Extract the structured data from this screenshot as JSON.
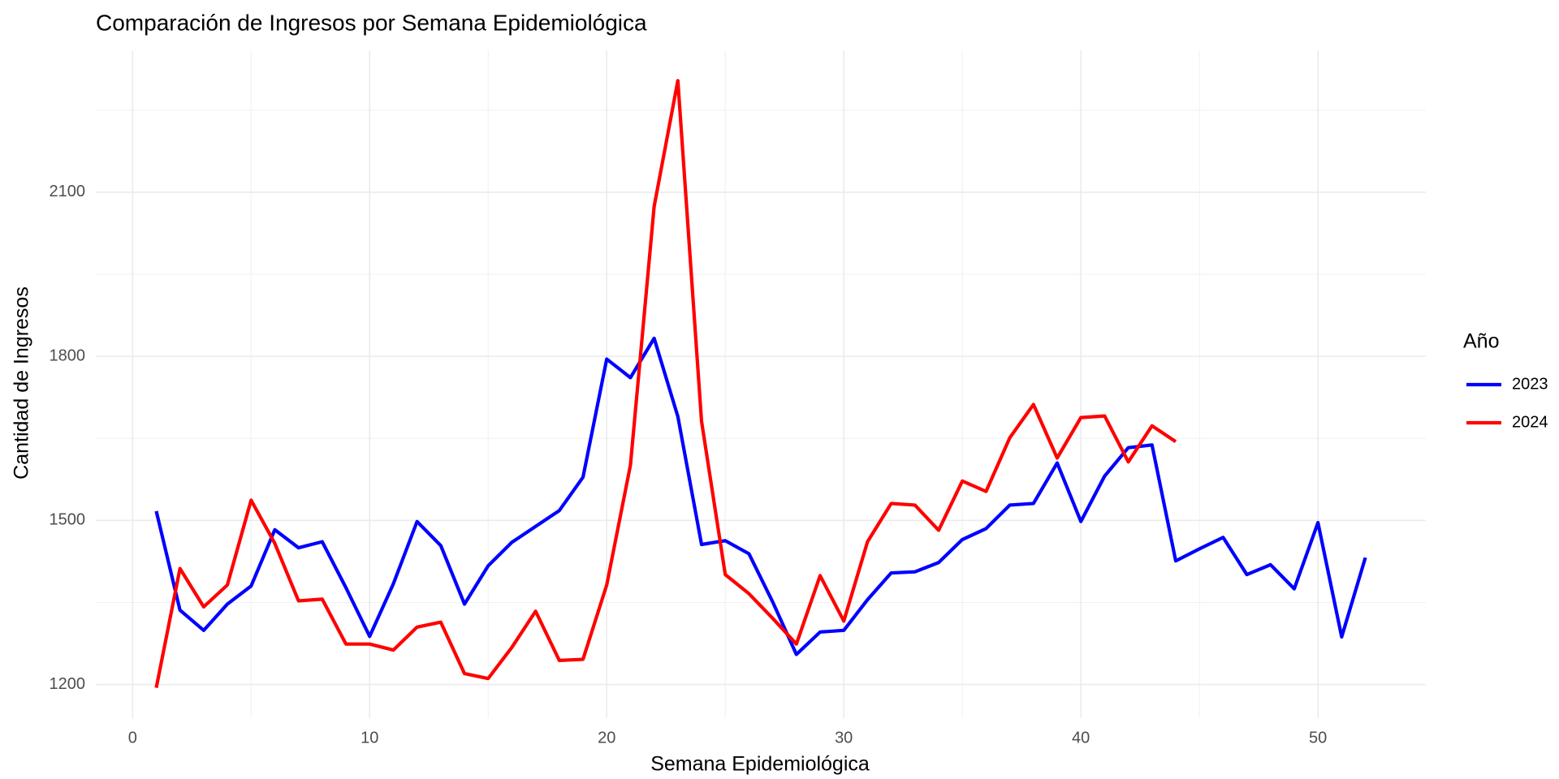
{
  "chart_data": {
    "type": "line",
    "title": "Comparación de Ingresos por Semana Epidemiológica",
    "x_label": "Semana Epidemiológica",
    "y_label": "Cantidad de Ingresos",
    "legend_title": "Año",
    "legend_position": "right",
    "grid": true,
    "x": [
      1,
      2,
      3,
      4,
      5,
      6,
      7,
      8,
      9,
      10,
      11,
      12,
      13,
      14,
      15,
      16,
      17,
      18,
      19,
      20,
      21,
      22,
      23,
      24,
      25,
      26,
      27,
      28,
      29,
      30,
      31,
      32,
      33,
      34,
      35,
      36,
      37,
      38,
      39,
      40,
      41,
      42,
      43,
      44,
      45,
      46,
      47,
      48,
      49,
      50,
      51,
      52
    ],
    "series": [
      {
        "name": "2023",
        "color": "#0000ff",
        "values": [
          1517,
          1336,
          1299,
          1347,
          1380,
          1483,
          1450,
          1461,
          1377,
          1288,
          1384,
          1498,
          1454,
          1347,
          1417,
          1460,
          1489,
          1518,
          1579,
          1795,
          1761,
          1833,
          1690,
          1456,
          1463,
          1439,
          1351,
          1255,
          1296,
          1299,
          1355,
          1404,
          1406,
          1423,
          1465,
          1485,
          1528,
          1531,
          1605,
          1498,
          1581,
          1633,
          1638,
          1426,
          1448,
          1469,
          1401,
          1419,
          1375,
          1496,
          1287,
          1432
        ]
      },
      {
        "name": "2024",
        "color": "#ff0000",
        "values": [
          1194,
          1412,
          1342,
          1382,
          1537,
          1458,
          1353,
          1356,
          1274,
          1274,
          1263,
          1305,
          1314,
          1220,
          1211,
          1268,
          1334,
          1244,
          1246,
          1382,
          1601,
          2074,
          2304,
          1681,
          1401,
          1366,
          1321,
          1274,
          1399,
          1316,
          1461,
          1531,
          1528,
          1482,
          1572,
          1553,
          1651,
          1712,
          1614,
          1688,
          1691,
          1607,
          1673,
          1644,
          null,
          null,
          null,
          null,
          null,
          null,
          null,
          null
        ]
      }
    ],
    "xlim": [
      -1.55,
      54.55
    ],
    "xticks": [
      0,
      10,
      20,
      30,
      40,
      50
    ],
    "ylim": [
      1138.5,
      2359.5
    ],
    "yticks": [
      1200,
      1500,
      1800,
      2100
    ]
  }
}
